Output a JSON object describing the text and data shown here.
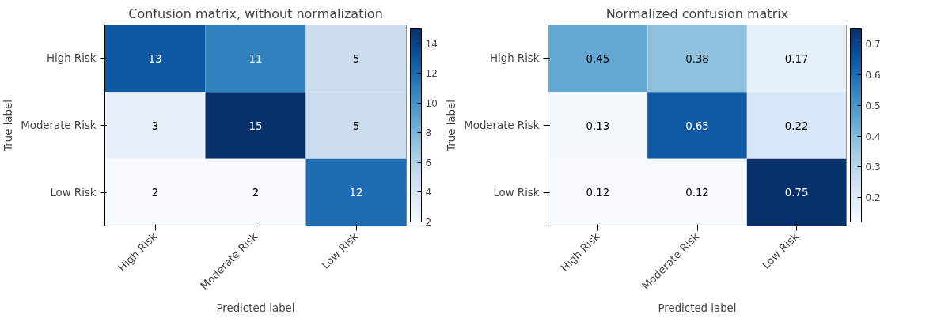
{
  "chart_data": [
    {
      "type": "heatmap",
      "title": "Confusion matrix, without normalization",
      "xlabel": "Predicted label",
      "ylabel": "True label",
      "categories": [
        "High Risk",
        "Moderate Risk",
        "Low Risk"
      ],
      "y_categories": [
        "High Risk",
        "Moderate Risk",
        "Low Risk"
      ],
      "cells": [
        [
          13,
          11,
          5
        ],
        [
          3,
          15,
          5
        ],
        [
          2,
          2,
          12
        ]
      ],
      "clim": [
        2,
        15
      ],
      "cticks": [
        2,
        4,
        6,
        8,
        10,
        12,
        14
      ],
      "data_labels": true
    },
    {
      "type": "heatmap",
      "title": "Normalized confusion matrix",
      "xlabel": "Predicted label",
      "ylabel": "True label",
      "categories": [
        "High Risk",
        "Moderate Risk",
        "Low Risk"
      ],
      "y_categories": [
        "High Risk",
        "Moderate Risk",
        "Low Risk"
      ],
      "cells": [
        [
          0.45,
          0.38,
          0.17
        ],
        [
          0.13,
          0.65,
          0.22
        ],
        [
          0.12,
          0.12,
          0.75
        ]
      ],
      "clim": [
        0.12,
        0.75
      ],
      "cticks": [
        0.2,
        0.3,
        0.4,
        0.5,
        0.6,
        0.7
      ],
      "data_labels": true
    }
  ]
}
